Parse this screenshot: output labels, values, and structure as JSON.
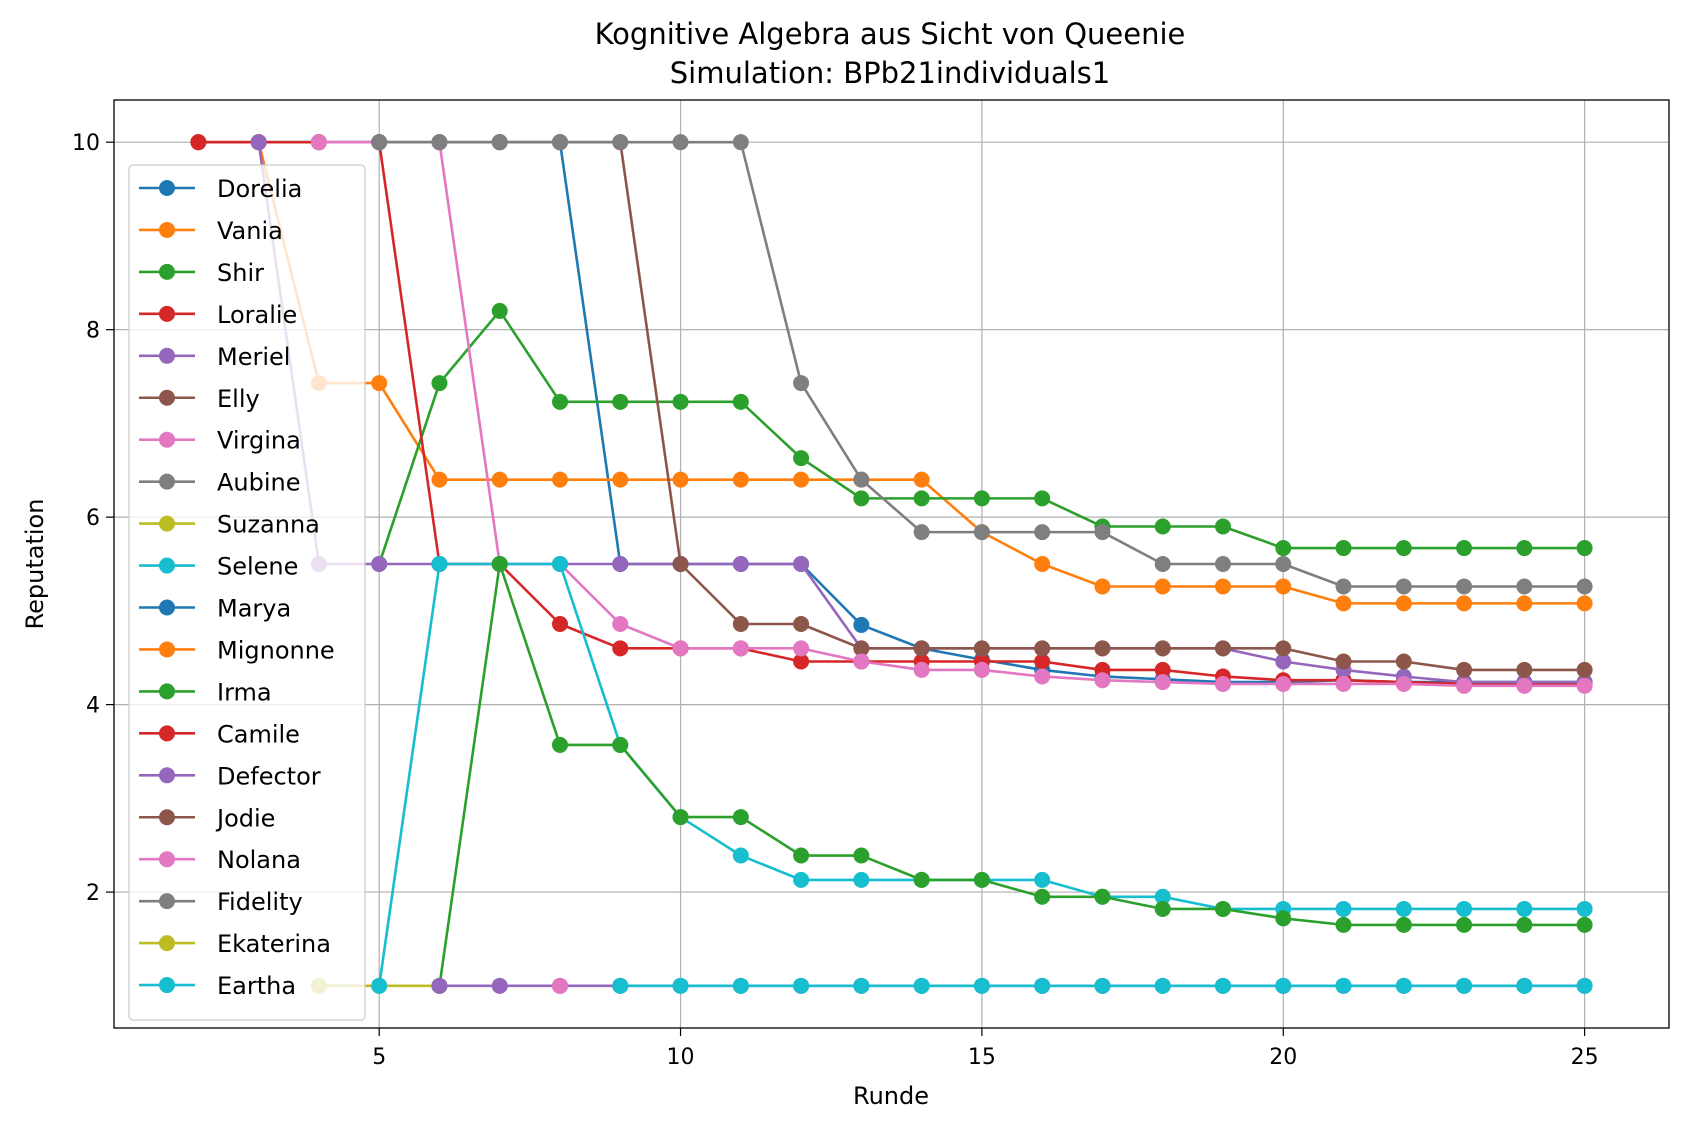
{
  "chart_data": {
    "type": "line",
    "title": "Kognitive Algebra aus Sicht von Queenie",
    "subtitle": "Simulation: BPb21individuals1",
    "xlabel": "Runde",
    "ylabel": "Reputation",
    "xlim": [
      0.6,
      26.4
    ],
    "ylim": [
      0.55,
      10.45
    ],
    "xticks": [
      5,
      10,
      15,
      20,
      25
    ],
    "yticks": [
      2,
      4,
      6,
      8,
      10
    ],
    "grid": true,
    "legend_position": "left",
    "series": [
      {
        "name": "Dorelia",
        "color": "#1f77b4",
        "x": [
          2,
          3,
          4,
          5,
          6,
          7,
          8,
          9,
          10,
          11,
          12,
          13,
          14,
          15,
          16,
          17,
          18,
          19,
          20,
          21,
          22,
          23,
          24,
          25
        ],
        "y": [
          10,
          10,
          10,
          10,
          10,
          10,
          10,
          5.5,
          5.5,
          5.5,
          5.5,
          4.85,
          4.6,
          4.48,
          4.37,
          4.3,
          4.27,
          4.24,
          4.24,
          4.26,
          4.24,
          4.24,
          4.24,
          4.24
        ]
      },
      {
        "name": "Vania",
        "color": "#ff7f0e",
        "x": [
          2,
          3,
          4,
          5,
          6,
          7,
          8,
          9,
          10,
          11,
          12,
          13,
          14,
          15,
          16,
          17,
          18,
          19,
          20,
          21,
          22,
          23,
          24,
          25
        ],
        "y": [
          10,
          10,
          7.43,
          7.43,
          6.4,
          6.4,
          6.4,
          6.4,
          6.4,
          6.4,
          6.4,
          6.4,
          6.4,
          5.84,
          5.5,
          5.26,
          5.26,
          5.26,
          5.26,
          5.08,
          5.08,
          5.08,
          5.08,
          5.08
        ]
      },
      {
        "name": "Shir",
        "color": "#2ca02c",
        "x": [
          5,
          6,
          7,
          8,
          9,
          10,
          11,
          12,
          13,
          14,
          15,
          16,
          17,
          18,
          19,
          20,
          21,
          22,
          23,
          24,
          25
        ],
        "y": [
          5.5,
          7.43,
          8.2,
          7.23,
          7.23,
          7.23,
          7.23,
          6.63,
          6.2,
          6.2,
          6.2,
          6.2,
          5.9,
          5.9,
          5.9,
          5.67,
          5.67,
          5.67,
          5.67,
          5.67,
          5.67
        ]
      },
      {
        "name": "Loralie",
        "color": "#d62728",
        "x": [
          2,
          3,
          4,
          5,
          6,
          7,
          8,
          9,
          10,
          11,
          12,
          13,
          14,
          15,
          16,
          17,
          18,
          19,
          20,
          21,
          22,
          23,
          24,
          25
        ],
        "y": [
          10,
          10,
          10,
          10,
          5.5,
          5.5,
          4.86,
          4.6,
          4.6,
          4.6,
          4.46,
          4.46,
          4.46,
          4.46,
          4.46,
          4.37,
          4.37,
          4.3,
          4.26,
          4.26,
          4.24,
          4.22,
          4.22,
          4.22
        ]
      },
      {
        "name": "Meriel",
        "color": "#9467bd",
        "x": [
          3,
          4,
          5,
          6,
          7,
          8,
          9,
          10,
          11,
          12,
          13,
          14,
          15,
          16,
          17,
          18,
          19,
          20,
          21,
          22,
          23,
          24,
          25
        ],
        "y": [
          10,
          5.5,
          5.5,
          5.5,
          5.5,
          5.5,
          5.5,
          5.5,
          5.5,
          5.5,
          4.6,
          4.6,
          4.6,
          4.6,
          4.6,
          4.6,
          4.6,
          4.46,
          4.37,
          4.3,
          4.24,
          4.24,
          4.24
        ]
      },
      {
        "name": "Elly",
        "color": "#8c564b",
        "x": [
          7,
          8,
          9,
          10,
          11,
          12,
          13,
          14,
          15,
          16,
          17,
          18,
          19,
          20,
          21,
          22,
          23,
          24,
          25
        ],
        "y": [
          10,
          10,
          10,
          5.5,
          4.86,
          4.86,
          4.6,
          4.6,
          4.6,
          4.6,
          4.6,
          4.6,
          4.6,
          4.6,
          4.46,
          4.46,
          4.37,
          4.37,
          4.37
        ]
      },
      {
        "name": "Virgina",
        "color": "#e377c2",
        "x": [
          4,
          5,
          6,
          7,
          8,
          9,
          10,
          11,
          12,
          13,
          14,
          15,
          16,
          17,
          18,
          19,
          20,
          21,
          22,
          23,
          24,
          25
        ],
        "y": [
          10,
          10,
          10,
          5.5,
          5.5,
          4.86,
          4.6,
          4.6,
          4.6,
          4.46,
          4.37,
          4.37,
          4.3,
          4.26,
          4.24,
          4.22,
          4.22,
          4.22,
          4.22,
          4.2,
          4.2,
          4.2
        ]
      },
      {
        "name": "Aubine",
        "color": "#7f7f7f",
        "x": [
          5,
          6,
          7,
          8,
          9,
          10,
          11,
          12,
          13,
          14,
          15,
          16,
          17,
          18,
          19,
          20,
          21,
          22,
          23,
          24,
          25
        ],
        "y": [
          10,
          10,
          10,
          10,
          10,
          10,
          10,
          7.43,
          6.4,
          5.84,
          5.84,
          5.84,
          5.84,
          5.5,
          5.5,
          5.5,
          5.26,
          5.26,
          5.26,
          5.26,
          5.26
        ]
      },
      {
        "name": "Suzanna",
        "color": "#bcbd22",
        "x": [
          4,
          5,
          6
        ],
        "y": [
          1,
          1,
          1
        ]
      },
      {
        "name": "Selene",
        "color": "#17becf",
        "x": [
          5,
          6,
          7,
          8,
          9,
          10,
          11,
          12,
          13,
          14,
          15,
          16,
          17,
          18,
          19,
          20,
          21,
          22,
          23,
          24,
          25
        ],
        "y": [
          1,
          5.5,
          5.5,
          5.5,
          3.57,
          2.8,
          2.39,
          2.13,
          2.13,
          2.13,
          2.13,
          2.13,
          1.95,
          1.95,
          1.82,
          1.82,
          1.82,
          1.82,
          1.82,
          1.82,
          1.82
        ]
      },
      {
        "name": "Marya",
        "color": "#1f77b4",
        "x": [],
        "y": []
      },
      {
        "name": "Mignonne",
        "color": "#ff7f0e",
        "x": [],
        "y": []
      },
      {
        "name": "Irma",
        "color": "#2ca02c",
        "x": [
          6,
          7,
          8,
          9,
          10,
          11,
          12,
          13,
          14,
          15,
          16,
          17,
          18,
          19,
          20,
          21,
          22,
          23,
          24,
          25
        ],
        "y": [
          1,
          5.5,
          3.57,
          3.57,
          2.8,
          2.8,
          2.39,
          2.39,
          2.13,
          2.13,
          1.95,
          1.95,
          1.82,
          1.82,
          1.72,
          1.65,
          1.65,
          1.65,
          1.65,
          1.65
        ]
      },
      {
        "name": "Camile",
        "color": "#d62728",
        "x": [],
        "y": []
      },
      {
        "name": "Defector",
        "color": "#9467bd",
        "x": [
          6,
          7,
          8,
          9,
          10,
          11,
          12,
          13,
          14,
          15,
          16,
          17,
          18,
          19,
          20,
          21,
          22,
          23,
          24,
          25
        ],
        "y": [
          1,
          1,
          1,
          1,
          1,
          1,
          1,
          1,
          1,
          1,
          1,
          1,
          1,
          1,
          1,
          1,
          1,
          1,
          1,
          1
        ]
      },
      {
        "name": "Jodie",
        "color": "#8c564b",
        "x": [],
        "y": []
      },
      {
        "name": "Nolana",
        "color": "#e377c2",
        "x": [
          8
        ],
        "y": [
          1
        ]
      },
      {
        "name": "Fidelity",
        "color": "#7f7f7f",
        "x": [],
        "y": []
      },
      {
        "name": "Ekaterina",
        "color": "#bcbd22",
        "x": [],
        "y": []
      },
      {
        "name": "Eartha",
        "color": "#17becf",
        "x": [
          9,
          10,
          11,
          12,
          13,
          14,
          15,
          16,
          17,
          18,
          19,
          20,
          21,
          22,
          23,
          24,
          25
        ],
        "y": [
          1,
          1,
          1,
          1,
          1,
          1,
          1,
          1,
          1,
          1,
          1,
          1,
          1,
          1,
          1,
          1,
          1
        ]
      }
    ]
  }
}
